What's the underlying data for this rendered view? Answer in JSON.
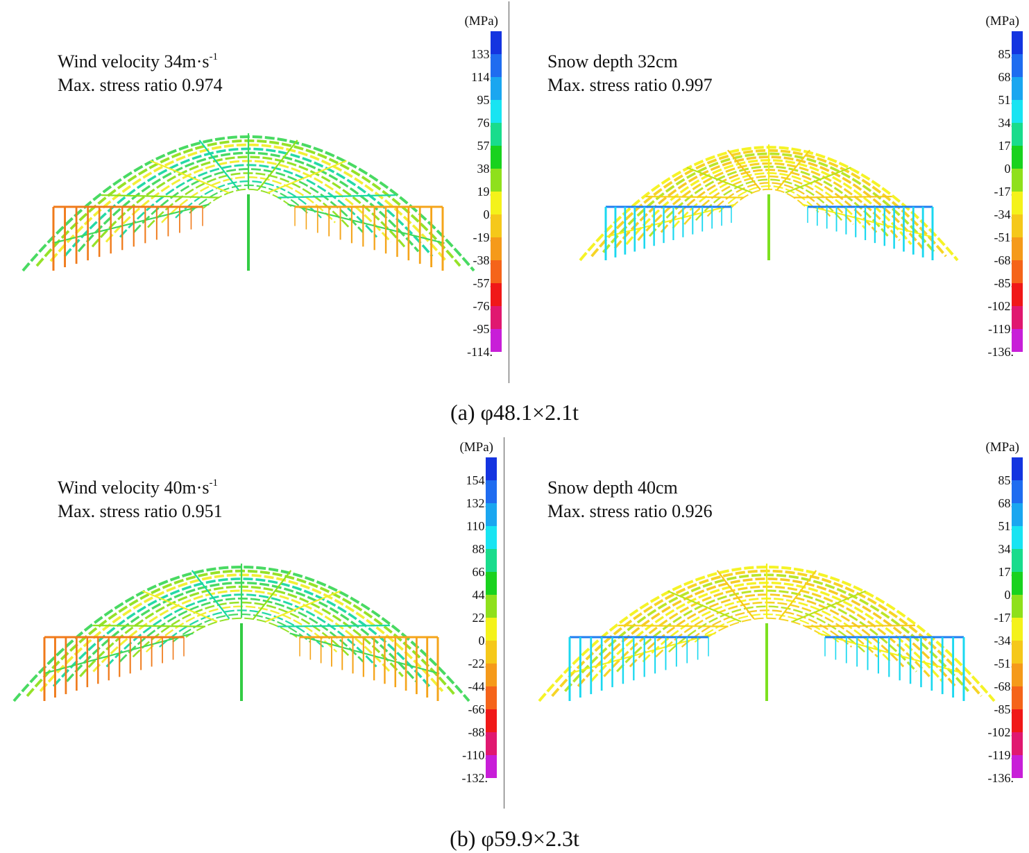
{
  "figure": {
    "rows": [
      {
        "caption": "(a) φ48.1×2.1t",
        "panels": [
          {
            "line1_prefix": "Wind velocity 34m·s",
            "line1_sup": "-1",
            "line2": "Max. stress ratio 0.974",
            "unit": "(MPa)",
            "ticks": [
              "133.",
              "114.",
              "95.",
              "76.",
              "57.",
              "38.",
              "19.",
              "0.",
              "-19.",
              "-38.",
              "-57.",
              "-76.",
              "-95.",
              "-114."
            ],
            "scheme": "wind"
          },
          {
            "line1_prefix": "Snow depth  32cm",
            "line1_sup": "",
            "line2": "Max. stress ratio 0.997",
            "unit": "(MPa)",
            "ticks": [
              "85.",
              "68.",
              "51.",
              "34.",
              "17.",
              "0.",
              "-17.",
              "-34.",
              "-51.",
              "-68.",
              "-85.",
              "-102.",
              "-119.",
              "-136."
            ],
            "scheme": "snow"
          }
        ]
      },
      {
        "caption": "(b) φ59.9×2.3t",
        "panels": [
          {
            "line1_prefix": "Wind velocity 40m·s",
            "line1_sup": "-1",
            "line2": "Max. stress ratio 0.951",
            "unit": "(MPa)",
            "ticks": [
              "154.",
              "132.",
              "110.",
              "88.",
              "66.",
              "44.",
              "22.",
              "0.",
              "-22.",
              "-44.",
              "-66.",
              "-88.",
              "-110.",
              "-132."
            ],
            "scheme": "wind"
          },
          {
            "line1_prefix": "Snow depth  40cm",
            "line1_sup": "",
            "line2": "Max. stress ratio 0.926",
            "unit": "(MPa)",
            "ticks": [
              "85.",
              "68.",
              "51.",
              "34.",
              "17.",
              "0.",
              "-17.",
              "-34.",
              "-51.",
              "-68.",
              "-85.",
              "-102.",
              "-119.",
              "-136."
            ],
            "scheme": "snow"
          }
        ]
      }
    ],
    "colorbar": [
      "#1434e0",
      "#1f6cf0",
      "#1aa6f0",
      "#18e4f2",
      "#19dc8c",
      "#19d21e",
      "#8fe01c",
      "#f4f21a",
      "#f5c81a",
      "#f59a1a",
      "#f5641a",
      "#f01818",
      "#e01870",
      "#c81ed8"
    ],
    "schemes": {
      "wind": {
        "arch": [
          "#3fd85a",
          "#8fe01c",
          "#f0ee2a",
          "#19d8a0"
        ],
        "left_post": "#f07a1a",
        "right_post": "#f5a41a",
        "center": "#33cc44",
        "rail": "#f5c81a"
      },
      "snow": {
        "arch": [
          "#f4f21a",
          "#f5d21a",
          "#b8e41c",
          "#f5c81a"
        ],
        "left_post": "#1ad8f0",
        "right_post": "#1ad8f0",
        "center": "#7de020",
        "rail": "#1f7cf0"
      }
    }
  }
}
